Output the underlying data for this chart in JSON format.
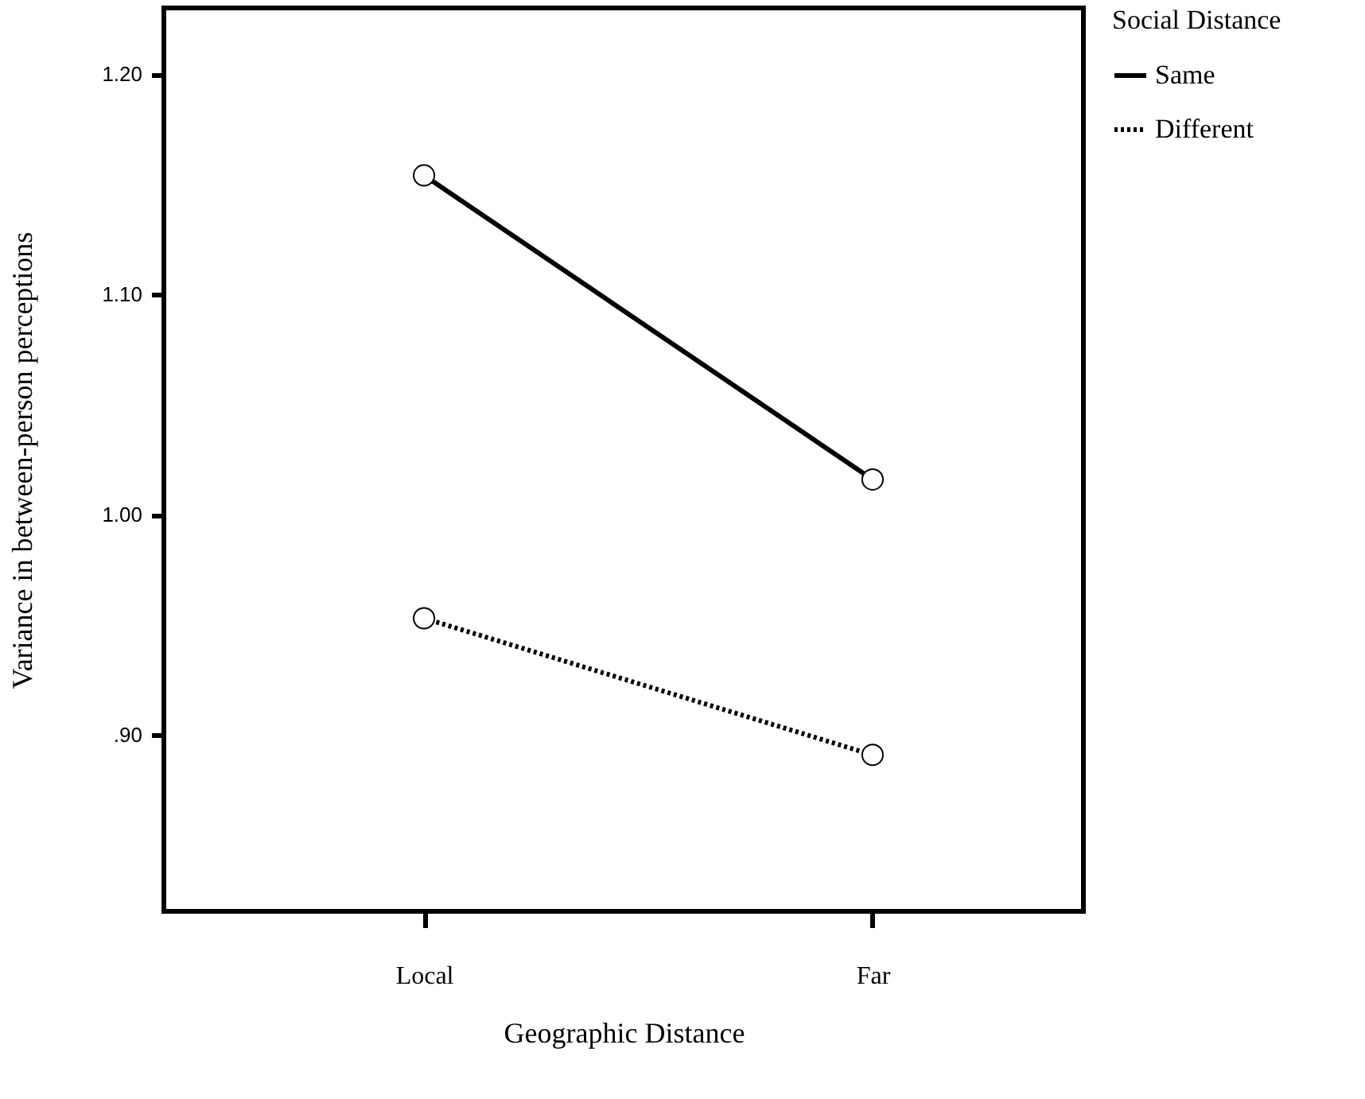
{
  "chart_data": {
    "type": "line",
    "xlabel": "Geographic Distance",
    "ylabel": "Variance in between-person perceptions",
    "legend_title": "Social Distance",
    "categories": [
      "Local",
      "Far"
    ],
    "series": [
      {
        "name": "Same",
        "color": "#000000",
        "line_style": "solid",
        "values": [
          1.154,
          1.016
        ]
      },
      {
        "name": "Different",
        "color": "#000000",
        "line_style": "dotted",
        "values": [
          0.953,
          0.891
        ]
      }
    ],
    "ylim": [
      0.82,
      1.23
    ],
    "yticks": [
      {
        "value": 0.9,
        "label": ".90"
      },
      {
        "value": 1.0,
        "label": "1.00"
      },
      {
        "value": 1.1,
        "label": "1.10"
      },
      {
        "value": 1.2,
        "label": "1.20"
      }
    ],
    "marker": "circle",
    "grid": false,
    "legend": "top right"
  }
}
